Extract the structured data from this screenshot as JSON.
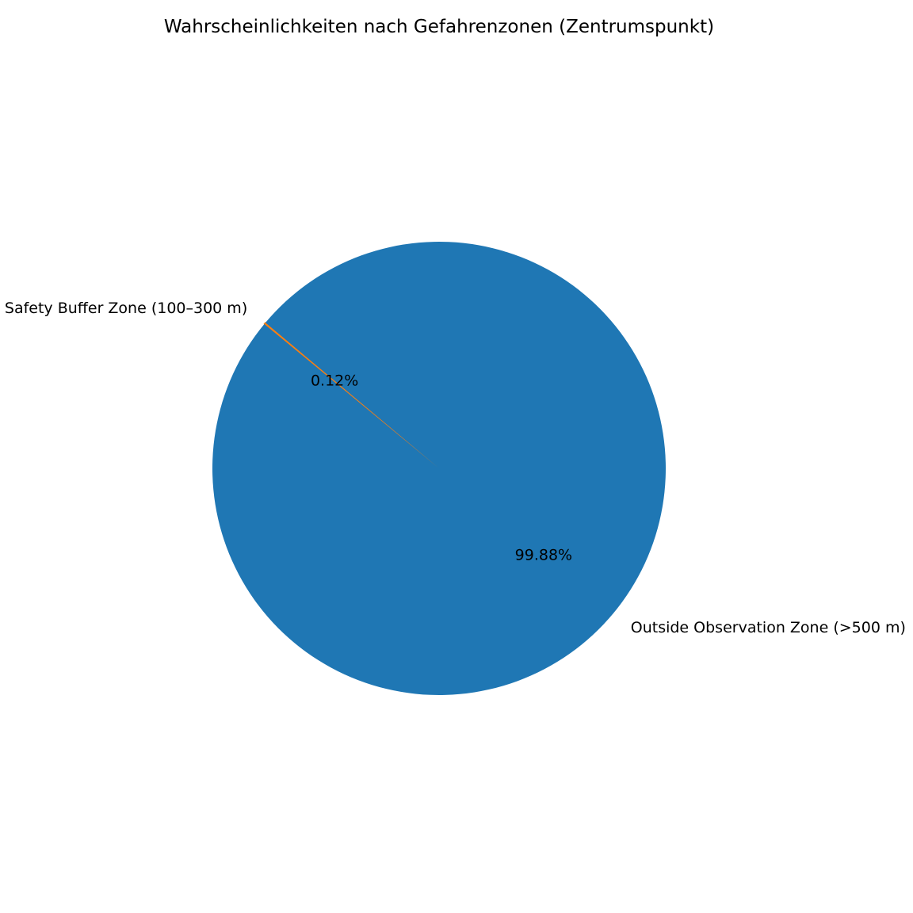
{
  "chart_data": {
    "type": "pie",
    "title": "Wahrscheinlichkeiten nach Gefahrenzonen (Zentrumspunkt)",
    "start_angle_deg": 140,
    "counterclock": true,
    "slices": [
      {
        "label": "Safety Buffer Zone (100–300 m)",
        "value": 0.12,
        "pct_label": "0.12%",
        "color": "#ff7f0e"
      },
      {
        "label": "Outside Observation Zone (>500 m)",
        "value": 99.88,
        "pct_label": "99.88%",
        "color": "#1f77b4"
      }
    ],
    "legend": "none"
  }
}
